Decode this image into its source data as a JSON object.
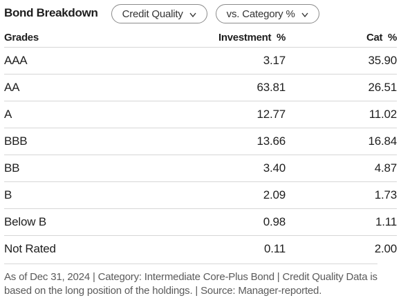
{
  "header": {
    "title": "Bond Breakdown",
    "dropdown_quality": "Credit Quality",
    "dropdown_compare": "vs. Category %"
  },
  "table": {
    "columns": [
      "Grades",
      "Investment  %",
      "Cat  %"
    ],
    "rows": [
      {
        "grade": "AAA",
        "investment": "3.17",
        "cat": "35.90"
      },
      {
        "grade": "AA",
        "investment": "63.81",
        "cat": "26.51"
      },
      {
        "grade": "A",
        "investment": "12.77",
        "cat": "11.02"
      },
      {
        "grade": "BBB",
        "investment": "13.66",
        "cat": "16.84"
      },
      {
        "grade": "BB",
        "investment": "3.40",
        "cat": "4.87"
      },
      {
        "grade": "B",
        "investment": "2.09",
        "cat": "1.73"
      },
      {
        "grade": "Below B",
        "investment": "0.98",
        "cat": "1.11"
      },
      {
        "grade": "Not Rated",
        "investment": "0.11",
        "cat": "2.00"
      }
    ]
  },
  "footer": {
    "note": "As of Dec 31, 2024 | Category: Intermediate Core-Plus Bond | Credit Quality Data is based on the long position of the holdings. | Source: Manager-reported."
  },
  "icons": {
    "dropdown_chevron": "chevron-down-icon"
  }
}
